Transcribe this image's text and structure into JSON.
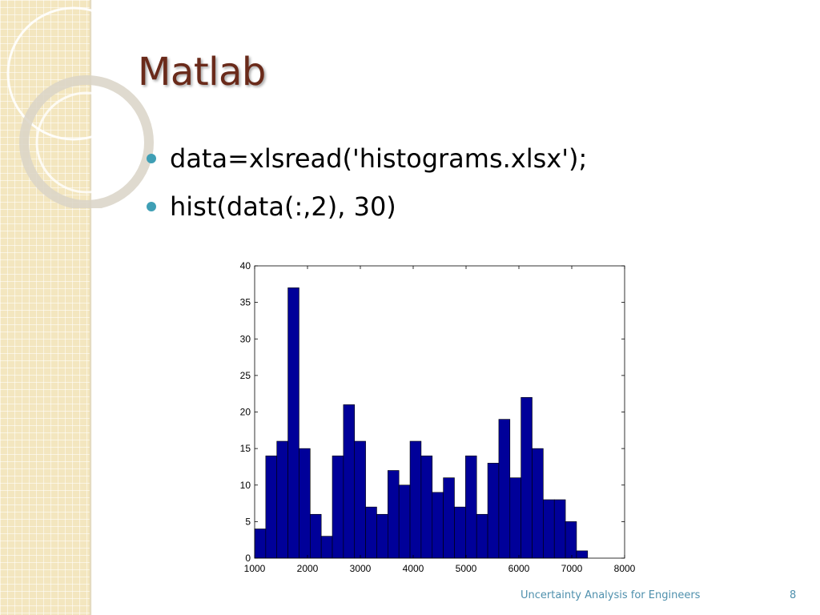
{
  "slide": {
    "title": "Matlab",
    "bullets": [
      "data=xlsread('histograms.xlsx');",
      "hist(data(:,2), 30)"
    ],
    "footer": "Uncertainty Analysis for Engineers",
    "page_number": "8",
    "colors": {
      "title": "#6a2a1a",
      "bullet": "#3f9fb5",
      "footer": "#4f90ad",
      "side_band": "#f3e6bf",
      "bar_fill": "#000099"
    }
  },
  "chart_data": {
    "type": "bar",
    "title": "",
    "xlabel": "",
    "ylabel": "",
    "xlim": [
      1000,
      8000
    ],
    "ylim": [
      0,
      40
    ],
    "xticks": [
      "1000",
      "2000",
      "3000",
      "4000",
      "5000",
      "6000",
      "7000",
      "8000"
    ],
    "yticks": [
      "0",
      "5",
      "10",
      "15",
      "20",
      "25",
      "30",
      "35",
      "40"
    ],
    "grid": false,
    "bin_width": 210,
    "bin_starts": [
      1000,
      1210,
      1420,
      1630,
      1840,
      2050,
      2260,
      2470,
      2680,
      2890,
      3100,
      3310,
      3520,
      3730,
      3940,
      4150,
      4360,
      4570,
      4780,
      4990,
      5200,
      5410,
      5620,
      5830,
      6040,
      6250,
      6460,
      6670,
      6880,
      7090
    ],
    "values": [
      4,
      14,
      16,
      37,
      15,
      6,
      3,
      14,
      21,
      16,
      7,
      6,
      12,
      10,
      16,
      14,
      9,
      11,
      7,
      14,
      6,
      13,
      19,
      11,
      22,
      15,
      8,
      8,
      5,
      1
    ]
  }
}
